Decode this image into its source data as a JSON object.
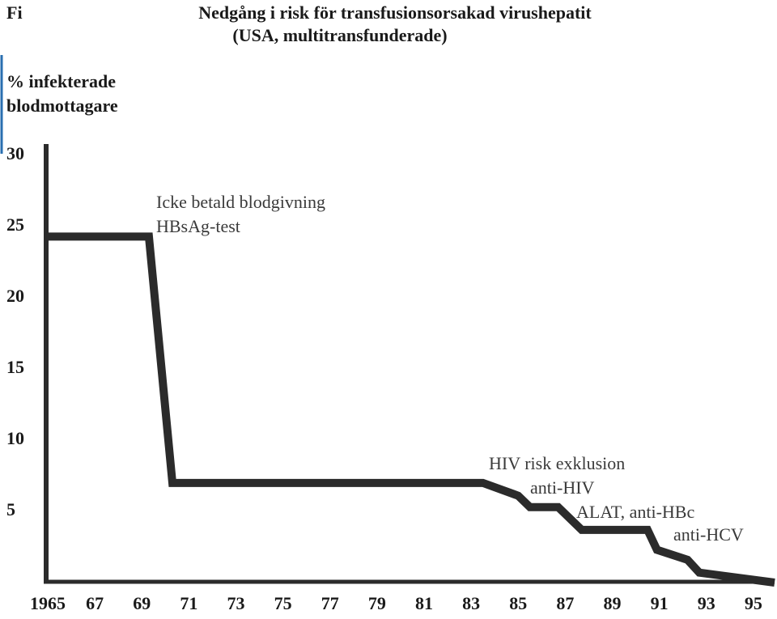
{
  "chart_data": {
    "type": "line",
    "corner_label": "Fi",
    "title": [
      "Nedgång i risk för transfusionsorsakad virushepatit",
      "(USA, multitransfunderade)"
    ],
    "y_label": [
      "% infekterade",
      "blodmottagare"
    ],
    "x": [
      1965,
      1969.3,
      1970.3,
      1983.5,
      1985.0,
      1985.5,
      1986.7,
      1987.7,
      1990.5,
      1990.9,
      1992.2,
      1992.7,
      1995.9
    ],
    "values": [
      24.3,
      24.3,
      7.0,
      7.0,
      6.1,
      5.3,
      5.3,
      3.7,
      3.7,
      2.3,
      1.6,
      0.7,
      0
    ],
    "color": "#2b2b2b",
    "xlim": [
      1965,
      1995.9
    ],
    "xticks": [
      1965,
      {
        "value": 1967,
        "label": "67"
      },
      {
        "value": 1969,
        "label": "69"
      },
      {
        "value": 1971,
        "label": "71"
      },
      {
        "value": 1973,
        "label": "73"
      },
      {
        "value": 1975,
        "label": "75"
      },
      {
        "value": 1977,
        "label": "77"
      },
      {
        "value": 1979,
        "label": "79"
      },
      {
        "value": 1981,
        "label": "81"
      },
      {
        "value": 1983,
        "label": "83"
      },
      {
        "value": 1985,
        "label": "85"
      },
      {
        "value": 1987,
        "label": "87"
      },
      {
        "value": 1989,
        "label": "89"
      },
      {
        "value": 1991,
        "label": "91"
      },
      {
        "value": 1993,
        "label": "93"
      },
      {
        "value": 1995,
        "label": "95"
      }
    ],
    "ylim": [
      0,
      30.8
    ],
    "yticks": [
      5,
      10,
      15,
      20,
      25,
      30
    ],
    "grid": false,
    "annotations": [
      "Icke betald blodgivning",
      "HBsAg-test",
      "HIV risk exklusion",
      "anti-HIV",
      "ALAT, anti-HBc",
      "anti-HCV"
    ]
  }
}
